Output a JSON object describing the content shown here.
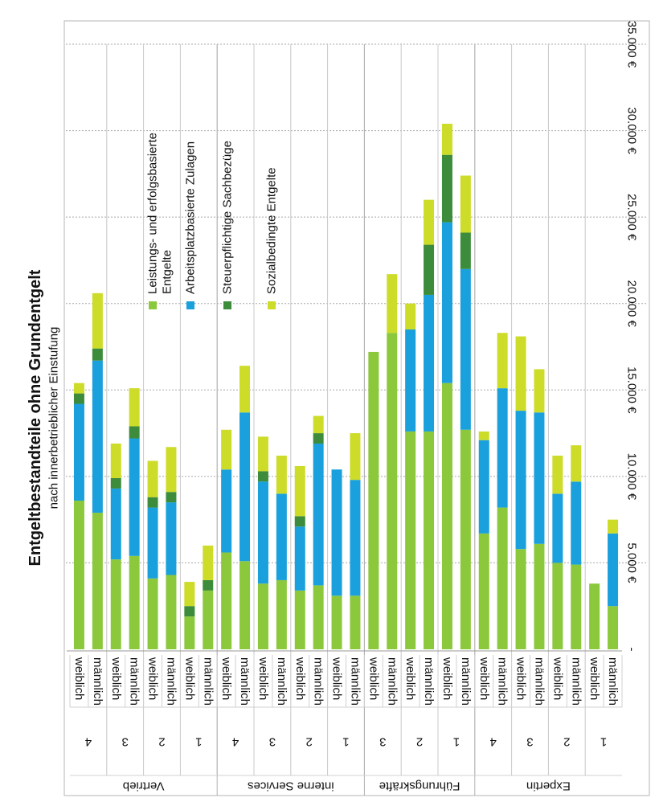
{
  "chart_data": {
    "type": "bar",
    "orientation": "horizontal-stacked",
    "title": "Entgeltbestandteile ohne Grundentgelt",
    "subtitle": "nach innerbetrieblicher Einstufung",
    "xlim": [
      0,
      35000
    ],
    "x_ticks": [
      {
        "value": 0,
        "label": "-"
      },
      {
        "value": 5000,
        "label": "5.000 €"
      },
      {
        "value": 10000,
        "label": "10.000 €"
      },
      {
        "value": 15000,
        "label": "15.000 €"
      },
      {
        "value": 20000,
        "label": "20.000 €"
      },
      {
        "value": 25000,
        "label": "25.000 €"
      },
      {
        "value": 30000,
        "label": "30.000 €"
      },
      {
        "value": 35000,
        "label": "35.000 €"
      }
    ],
    "grid": true,
    "legend_position": "top-center",
    "groups": [
      {
        "name": "Vertrieb",
        "levels": [
          {
            "level": "4",
            "bars": [
              {
                "gender": "weiblich",
                "values": [
                  8600,
                  5600,
                  600,
                  600
                ]
              },
              {
                "gender": "männlich",
                "values": [
                  7900,
                  8800,
                  700,
                  3200
                ]
              }
            ]
          },
          {
            "level": "3",
            "bars": [
              {
                "gender": "weiblich",
                "values": [
                  5200,
                  4100,
                  600,
                  2000
                ]
              },
              {
                "gender": "männlich",
                "values": [
                  5400,
                  6800,
                  700,
                  2200
                ]
              }
            ]
          },
          {
            "level": "2",
            "bars": [
              {
                "gender": "weiblich",
                "values": [
                  4100,
                  4100,
                  600,
                  2100
                ]
              },
              {
                "gender": "männlich",
                "values": [
                  4300,
                  4200,
                  600,
                  2600
                ]
              }
            ]
          },
          {
            "level": "1",
            "bars": [
              {
                "gender": "weiblich",
                "values": [
                  1900,
                  0,
                  600,
                  1400
                ]
              },
              {
                "gender": "männlich",
                "values": [
                  3400,
                  0,
                  600,
                  2000
                ]
              }
            ]
          }
        ]
      },
      {
        "name": "interne Services",
        "levels": [
          {
            "level": "4",
            "bars": [
              {
                "gender": "weiblich",
                "values": [
                  5600,
                  4800,
                  0,
                  2300
                ]
              },
              {
                "gender": "männlich",
                "values": [
                  5100,
                  8600,
                  0,
                  2700
                ]
              }
            ]
          },
          {
            "level": "3",
            "bars": [
              {
                "gender": "weiblich",
                "values": [
                  3800,
                  5900,
                  600,
                  2000
                ]
              },
              {
                "gender": "männlich",
                "values": [
                  4000,
                  5000,
                  0,
                  2200
                ]
              }
            ]
          },
          {
            "level": "2",
            "bars": [
              {
                "gender": "weiblich",
                "values": [
                  3400,
                  3700,
                  600,
                  2900
                ]
              },
              {
                "gender": "männlich",
                "values": [
                  3700,
                  8200,
                  600,
                  1000
                ]
              }
            ]
          },
          {
            "level": "1",
            "bars": [
              {
                "gender": "weiblich",
                "values": [
                  3100,
                  7300,
                  0,
                  0
                ]
              },
              {
                "gender": "männlich",
                "values": [
                  3100,
                  6700,
                  0,
                  2700
                ]
              }
            ]
          }
        ]
      },
      {
        "name": "Führungskräfte",
        "levels": [
          {
            "level": "3",
            "bars": [
              {
                "gender": "weiblich",
                "values": [
                  17200,
                  0,
                  0,
                  0
                ]
              },
              {
                "gender": "männlich",
                "values": [
                  18300,
                  0,
                  0,
                  3400
                ]
              }
            ]
          },
          {
            "level": "2",
            "bars": [
              {
                "gender": "weiblich",
                "values": [
                  12600,
                  5900,
                  0,
                  1500
                ]
              },
              {
                "gender": "männlich",
                "values": [
                  12600,
                  7900,
                  2900,
                  2600
                ]
              }
            ]
          },
          {
            "level": "1",
            "bars": [
              {
                "gender": "weiblich",
                "values": [
                  15400,
                  9300,
                  3900,
                  1800
                ]
              },
              {
                "gender": "männlich",
                "values": [
                  12700,
                  9300,
                  2100,
                  3300
                ]
              }
            ]
          }
        ]
      },
      {
        "name": "Expertin",
        "levels": [
          {
            "level": "4",
            "bars": [
              {
                "gender": "weiblich",
                "values": [
                  6700,
                  5400,
                  0,
                  500
                ]
              },
              {
                "gender": "männlich",
                "values": [
                  8200,
                  6900,
                  0,
                  3200
                ]
              }
            ]
          },
          {
            "level": "3",
            "bars": [
              {
                "gender": "weiblich",
                "values": [
                  5800,
                  8000,
                  0,
                  4300
                ]
              },
              {
                "gender": "männlich",
                "values": [
                  6100,
                  7600,
                  0,
                  2500
                ]
              }
            ]
          },
          {
            "level": "2",
            "bars": [
              {
                "gender": "weiblich",
                "values": [
                  5000,
                  4000,
                  0,
                  2200
                ]
              },
              {
                "gender": "männlich",
                "values": [
                  4900,
                  4800,
                  0,
                  2100
                ]
              }
            ]
          },
          {
            "level": "1",
            "bars": [
              {
                "gender": "weiblich",
                "values": [
                  3800,
                  0,
                  0,
                  0
                ]
              },
              {
                "gender": "männlich",
                "values": [
                  2500,
                  4200,
                  0,
                  800
                ]
              }
            ]
          }
        ]
      }
    ],
    "series": [
      {
        "name": "Leistungs- und erfolgsbasierte Entgelte",
        "name_lines": [
          "Leistungs- und erfolgsbasierte",
          "Entgelte"
        ],
        "color": "#8cc83c"
      },
      {
        "name": "Arbeitsplatzbasierte Zulagen",
        "name_lines": [
          "Arbeitsplatzbasierte Zulagen"
        ],
        "color": "#1aa0dc"
      },
      {
        "name": "Steuerpflichtige Sachbezüge",
        "name_lines": [
          "Steuerpflichtige Sachbezüge"
        ],
        "color": "#3c8c3c"
      },
      {
        "name": "Sozialbedingte Entgelte",
        "name_lines": [
          "Sozialbedingte Entgelte"
        ],
        "color": "#cddc28"
      }
    ]
  }
}
